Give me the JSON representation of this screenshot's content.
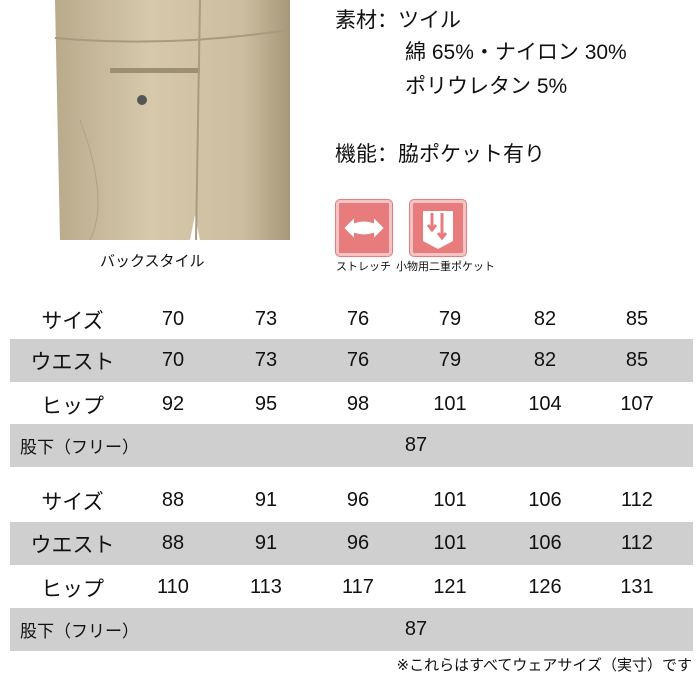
{
  "photo": {
    "caption": "バックスタイル"
  },
  "specs": {
    "material_label": "素材：",
    "material_lines": [
      "ツイル",
      "綿 65%・ナイロン 30%",
      "ポリウレタン 5%"
    ],
    "function_label": "機能：",
    "function_value": "脇ポケット有り"
  },
  "icons": [
    {
      "name": "stretch-icon",
      "label": "ストレッチ",
      "color": "#e87c7c"
    },
    {
      "name": "double-pocket-icon",
      "label": "小物用二重ポケット",
      "color": "#e87c7c"
    }
  ],
  "tables": [
    {
      "rows": [
        {
          "label": "サイズ",
          "values": [
            "70",
            "73",
            "76",
            "79",
            "82",
            "85"
          ]
        },
        {
          "label": "ウエスト",
          "values": [
            "70",
            "73",
            "76",
            "79",
            "82",
            "85"
          ]
        },
        {
          "label": "ヒップ",
          "values": [
            "92",
            "95",
            "98",
            "101",
            "104",
            "107"
          ]
        },
        {
          "label": "股下（フリー）",
          "value": "87"
        }
      ]
    },
    {
      "rows": [
        {
          "label": "サイズ",
          "values": [
            "88",
            "91",
            "96",
            "101",
            "106",
            "112"
          ]
        },
        {
          "label": "ウエスト",
          "values": [
            "88",
            "91",
            "96",
            "101",
            "106",
            "112"
          ]
        },
        {
          "label": "ヒップ",
          "values": [
            "110",
            "113",
            "117",
            "121",
            "126",
            "131"
          ]
        },
        {
          "label": "股下（フリー）",
          "value": "87"
        }
      ]
    }
  ],
  "note": "※これらはすべてウェアサイズ（実寸）です"
}
